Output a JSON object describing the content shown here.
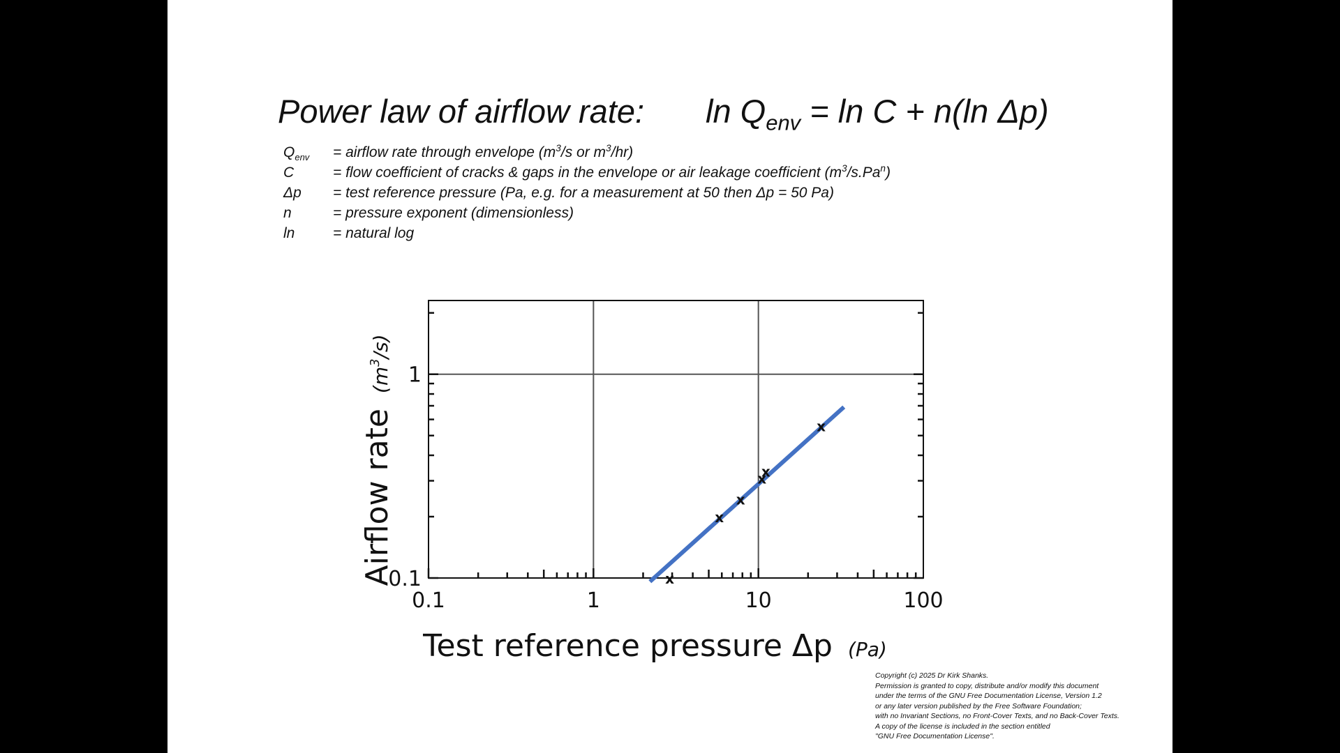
{
  "title": {
    "label": "Power law of airflow rate:",
    "equation_part1": "ln Q",
    "equation_sub": "env",
    "equation_part2": " = ln C + n(ln Δp)"
  },
  "definitions": [
    {
      "symbol": "Q",
      "symbol_sub": "env",
      "text_a": "= airflow rate through envelope (m",
      "sup_a": "3",
      "text_b": "/s or m",
      "sup_b": "3",
      "text_c": "/hr)"
    },
    {
      "symbol": "C",
      "symbol_sub": "",
      "text_a": "= flow coefficient of cracks & gaps in the envelope or air leakage coefficient (m",
      "sup_a": "3",
      "text_b": "/s.Pa",
      "sup_b": "n",
      "text_c": ")"
    },
    {
      "symbol": "Δp",
      "symbol_sub": "",
      "text_a": "= test reference pressure (Pa, e.g. for a measurement at 50 then Δp = 50 Pa)",
      "sup_a": "",
      "text_b": "",
      "sup_b": "",
      "text_c": ""
    },
    {
      "symbol": "n",
      "symbol_sub": "",
      "text_a": "= pressure exponent (dimensionless)",
      "sup_a": "",
      "text_b": "",
      "sup_b": "",
      "text_c": ""
    },
    {
      "symbol": "ln",
      "symbol_sub": "",
      "text_a": "= natural log",
      "sup_a": "",
      "text_b": "",
      "sup_b": "",
      "text_c": ""
    }
  ],
  "chart_data": {
    "type": "scatter",
    "x_scale": "log",
    "y_scale": "log",
    "xlim": [
      0.1,
      100
    ],
    "ylim": [
      0.1,
      2.3
    ],
    "x_ticks": [
      0.1,
      1,
      10,
      100
    ],
    "x_tick_labels": [
      "0.1",
      "1",
      "10",
      "100"
    ],
    "y_ticks": [
      0.1,
      1
    ],
    "y_tick_labels": [
      "0.1",
      "1"
    ],
    "grid": "major decades",
    "xlabel": "Test reference pressure Δp",
    "xlabel_unit": "(Pa)",
    "ylabel": "Airflow rate",
    "ylabel_unit_base": "(m",
    "ylabel_unit_sup": "3",
    "ylabel_unit_end": "/s)",
    "marker": "x",
    "points": [
      {
        "x": 2.9,
        "y": 0.1
      },
      {
        "x": 5.8,
        "y": 0.2
      },
      {
        "x": 7.8,
        "y": 0.245
      },
      {
        "x": 10.5,
        "y": 0.31
      },
      {
        "x": 11.1,
        "y": 0.335
      },
      {
        "x": 24,
        "y": 0.56
      }
    ],
    "fit_line": {
      "x": [
        2.2,
        33
      ],
      "y": [
        0.096,
        0.69
      ],
      "color": "#4472C4"
    }
  },
  "copyright": [
    "Copyright (c) 2025 Dr Kirk Shanks.",
    "Permission is granted to copy, distribute and/or modify this document",
    "under the terms of the GNU Free Documentation License, Version 1.2",
    "or any later version published by the Free Software Foundation;",
    "with no Invariant Sections, no Front-Cover Texts, and no Back-Cover Texts.",
    "A copy of the license is included in the section entitled",
    "\"GNU Free Documentation License\"."
  ]
}
